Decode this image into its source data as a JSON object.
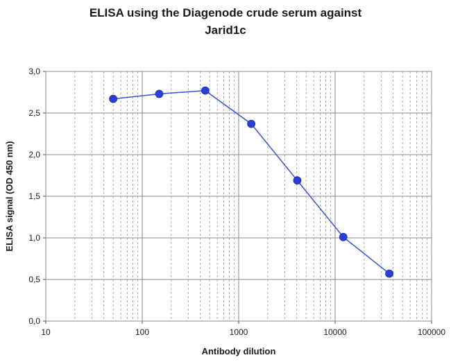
{
  "chart_data": {
    "type": "line",
    "title_line1": "ELISA using the Diagenode crude serum against",
    "title_line2": "Jarid1c",
    "xlabel": "Antibody dilution",
    "ylabel": "ELISA signal (OD 450 nm)",
    "x_scale": "log",
    "xlim": [
      10,
      100000
    ],
    "ylim": [
      0,
      3.0
    ],
    "x_tick_labels": [
      "10",
      "100",
      "1000",
      "10000",
      "100000"
    ],
    "x_tick_values": [
      10,
      100,
      1000,
      10000,
      100000
    ],
    "y_tick_labels": [
      "0,0",
      "0,5",
      "1,0",
      "1,5",
      "2,0",
      "2,5",
      "3,0"
    ],
    "y_tick_values": [
      0,
      0.5,
      1.0,
      1.5,
      2.0,
      2.5,
      3.0
    ],
    "grid": true,
    "legend": "none",
    "series": [
      {
        "x": [
          50,
          150,
          450,
          1350,
          4050,
          12150,
          36450
        ],
        "y": [
          2.67,
          2.73,
          2.77,
          2.37,
          1.69,
          1.01,
          0.57
        ],
        "color": "#3b4fd8",
        "marker_color": "#2a3fd6"
      }
    ]
  }
}
